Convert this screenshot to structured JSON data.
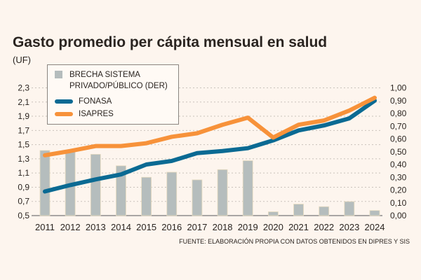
{
  "chart_data": {
    "type": "bar+line",
    "title": "Gasto promedio per cápita mensual en salud",
    "ylabel": "(UF)",
    "categories": [
      "2011",
      "2012",
      "2013",
      "2014",
      "2015",
      "2016",
      "2017",
      "2018",
      "2019",
      "2020",
      "2021",
      "2022",
      "2023",
      "2024"
    ],
    "y_left": {
      "ylim": [
        0.5,
        2.3
      ],
      "ticks": [
        "0,5",
        "0,7",
        "0,9",
        "1,1",
        "1,3",
        "1,5",
        "1,7",
        "1,9",
        "2,1",
        "2,3"
      ]
    },
    "y_right": {
      "ylim": [
        0,
        1.0
      ],
      "ticks": [
        "0,00",
        "0,10",
        "0,20",
        "0,30",
        "0,40",
        "0,50",
        "0,60",
        "0,70",
        "0,80",
        "0,90",
        "1,00"
      ]
    },
    "grid": true,
    "legend_position": "top-left",
    "series": [
      {
        "name": "BRECHA SISTEMA PRIVADO/PÚBLICO (DER)",
        "type": "bar",
        "axis": "right",
        "color": "#b5bdbd",
        "values": [
          0.51,
          0.5,
          0.48,
          0.39,
          0.3,
          0.34,
          0.28,
          0.36,
          0.43,
          0.03,
          0.09,
          0.07,
          0.11,
          0.04
        ]
      },
      {
        "name": "FONASA",
        "type": "line",
        "axis": "left",
        "color": "#0a6a93",
        "values": [
          0.84,
          0.93,
          1.01,
          1.08,
          1.22,
          1.27,
          1.38,
          1.41,
          1.45,
          1.56,
          1.7,
          1.77,
          1.87,
          2.12
        ]
      },
      {
        "name": "ISAPRES",
        "type": "line",
        "axis": "left",
        "color": "#f7923a",
        "values": [
          1.35,
          1.41,
          1.48,
          1.48,
          1.52,
          1.61,
          1.66,
          1.78,
          1.88,
          1.6,
          1.78,
          1.84,
          1.98,
          2.16
        ]
      }
    ],
    "source": "FUENTE: ELABORACIÓN PROPIA CON DATOS OBTENIDOS EN DIPRES Y SIS"
  }
}
